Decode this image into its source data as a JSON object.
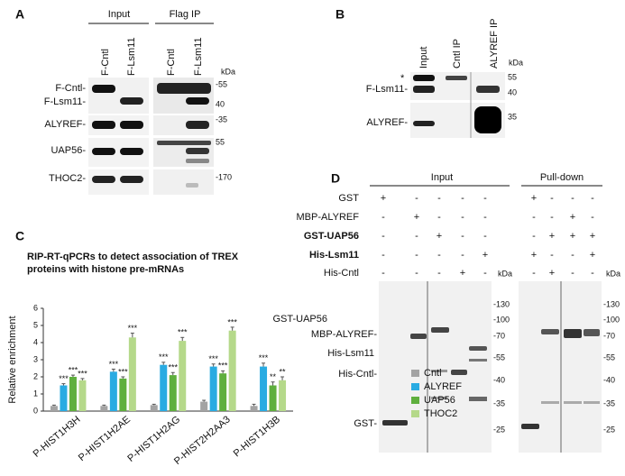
{
  "panel_a": {
    "label": "A",
    "groups": [
      "Input",
      "Flag IP"
    ],
    "lanes": [
      "F-Cntl",
      "F-Lsm11",
      "F-Cntl",
      "F-Lsm11"
    ],
    "kda": "kDa",
    "rows": [
      "F-Cntl-",
      "F-Lsm11-",
      "ALYREF-",
      "UAP56-",
      "THOC2-"
    ],
    "markers": [
      "-55",
      "40",
      "-35",
      "55",
      "-170"
    ]
  },
  "panel_b": {
    "label": "B",
    "lanes": [
      "Input",
      "Cntl IP",
      "ALYREF IP"
    ],
    "kda": "kDa",
    "asterisk": "*",
    "rows": [
      "F-Lsm11-",
      "ALYREF-"
    ],
    "markers": [
      "55",
      "40",
      "35"
    ]
  },
  "panel_d": {
    "label": "D",
    "groups": [
      "Input",
      "Pull-down"
    ],
    "rows": [
      "GST",
      "MBP-ALYREF",
      "GST-UAP56",
      "His-Lsm11",
      "His-Cntl"
    ],
    "input_signs": [
      [
        "+",
        "-",
        "-",
        "-",
        "-"
      ],
      [
        "-",
        "+",
        "-",
        "-",
        "-"
      ],
      [
        "-",
        "-",
        "+",
        "-",
        "-"
      ],
      [
        "-",
        "-",
        "-",
        "-",
        "+"
      ],
      [
        "-",
        "-",
        "-",
        "+",
        "-"
      ]
    ],
    "pulldown_signs": [
      [
        "+",
        "-",
        "-",
        "-"
      ],
      [
        "-",
        "-",
        "+",
        "-"
      ],
      [
        "-",
        "+",
        "+",
        "+"
      ],
      [
        "+",
        "-",
        "-",
        "+"
      ],
      [
        "-",
        "+",
        "-",
        "-"
      ]
    ],
    "kda": "kDa",
    "markers": [
      "-130",
      "-100",
      "-70",
      "-55",
      "-40",
      "-35",
      "-25"
    ],
    "pulldown_markers": [
      "-130",
      "-100",
      "-70",
      "-55",
      "-40",
      "-35",
      "-25"
    ],
    "band_labels": [
      "GST-UAP56",
      "MBP-ALYREF-",
      "His-Lsm11",
      "His-Cntl-",
      "GST-"
    ]
  },
  "chart_data": {
    "type": "bar",
    "panel_label": "C",
    "title": "RIP-RT-qPCRs to detect association of TREX proteins with histone pre-mRNAs",
    "y_label": "Relative enrichment",
    "categories": [
      "P-HIST1H3H",
      "P-HIST1H2AE",
      "P-HIST1H2AG",
      "P-HIST2H2AA3",
      "P-HIST1H3B"
    ],
    "series": [
      {
        "name": "Cntl",
        "color": "#a3a3a3",
        "values": [
          0.3,
          0.3,
          0.35,
          0.55,
          0.3
        ],
        "errors": [
          0.05,
          0.05,
          0.05,
          0.08,
          0.1
        ]
      },
      {
        "name": "ALYREF",
        "color": "#29abe2",
        "values": [
          1.5,
          2.3,
          2.7,
          2.6,
          2.6
        ],
        "errors": [
          0.1,
          0.15,
          0.15,
          0.15,
          0.2
        ],
        "value_labels": [
          "***",
          "***",
          "***",
          "***",
          "***"
        ]
      },
      {
        "name": "UAP56",
        "color": "#5faf3e",
        "values": [
          2.0,
          1.9,
          2.1,
          2.2,
          1.5
        ],
        "errors": [
          0.1,
          0.1,
          0.15,
          0.15,
          0.2
        ],
        "value_labels": [
          "***",
          "***",
          "***",
          "***",
          "**"
        ]
      },
      {
        "name": "THOC2",
        "color": "#b5d98a",
        "values": [
          1.8,
          4.3,
          4.1,
          4.7,
          1.8
        ],
        "errors": [
          0.1,
          0.25,
          0.2,
          0.2,
          0.2
        ],
        "value_labels": [
          "***",
          "***",
          "***",
          "***",
          "**"
        ]
      }
    ],
    "ylim": [
      0,
      6
    ],
    "yticks": [
      0,
      1,
      2,
      3,
      4,
      5,
      6
    ],
    "grid": false
  }
}
